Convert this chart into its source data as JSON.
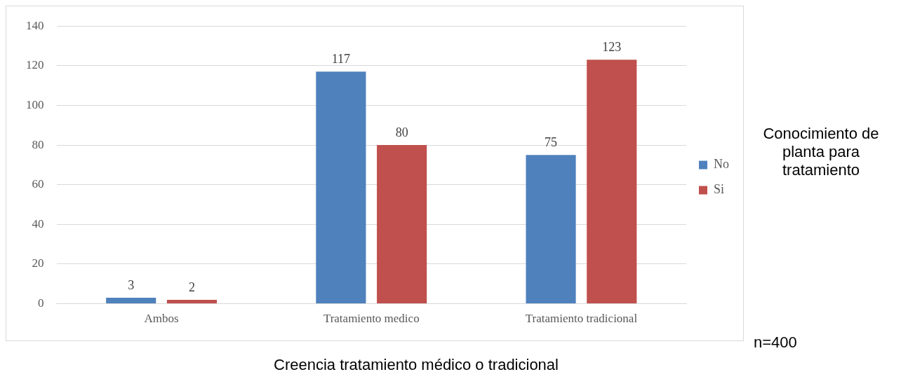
{
  "chart_data": {
    "type": "bar",
    "xlabel": "Creencia tratamiento médico o tradicional",
    "legend_title": "Conocimiento de planta para tratamiento",
    "annotations": [
      "n=400"
    ],
    "categories": [
      "Ambos",
      "Tratamiento medico",
      "Tratamiento tradicional"
    ],
    "series": [
      {
        "name": "No",
        "color": "#4f81bd",
        "values": [
          3,
          117,
          75
        ]
      },
      {
        "name": "Si",
        "color": "#c0504d",
        "values": [
          2,
          80,
          123
        ]
      }
    ],
    "ylim": [
      0,
      140
    ],
    "yticks": [
      0,
      20,
      40,
      60,
      80,
      100,
      120,
      140
    ],
    "grid": "y",
    "legend": "right",
    "data_labels": true
  }
}
